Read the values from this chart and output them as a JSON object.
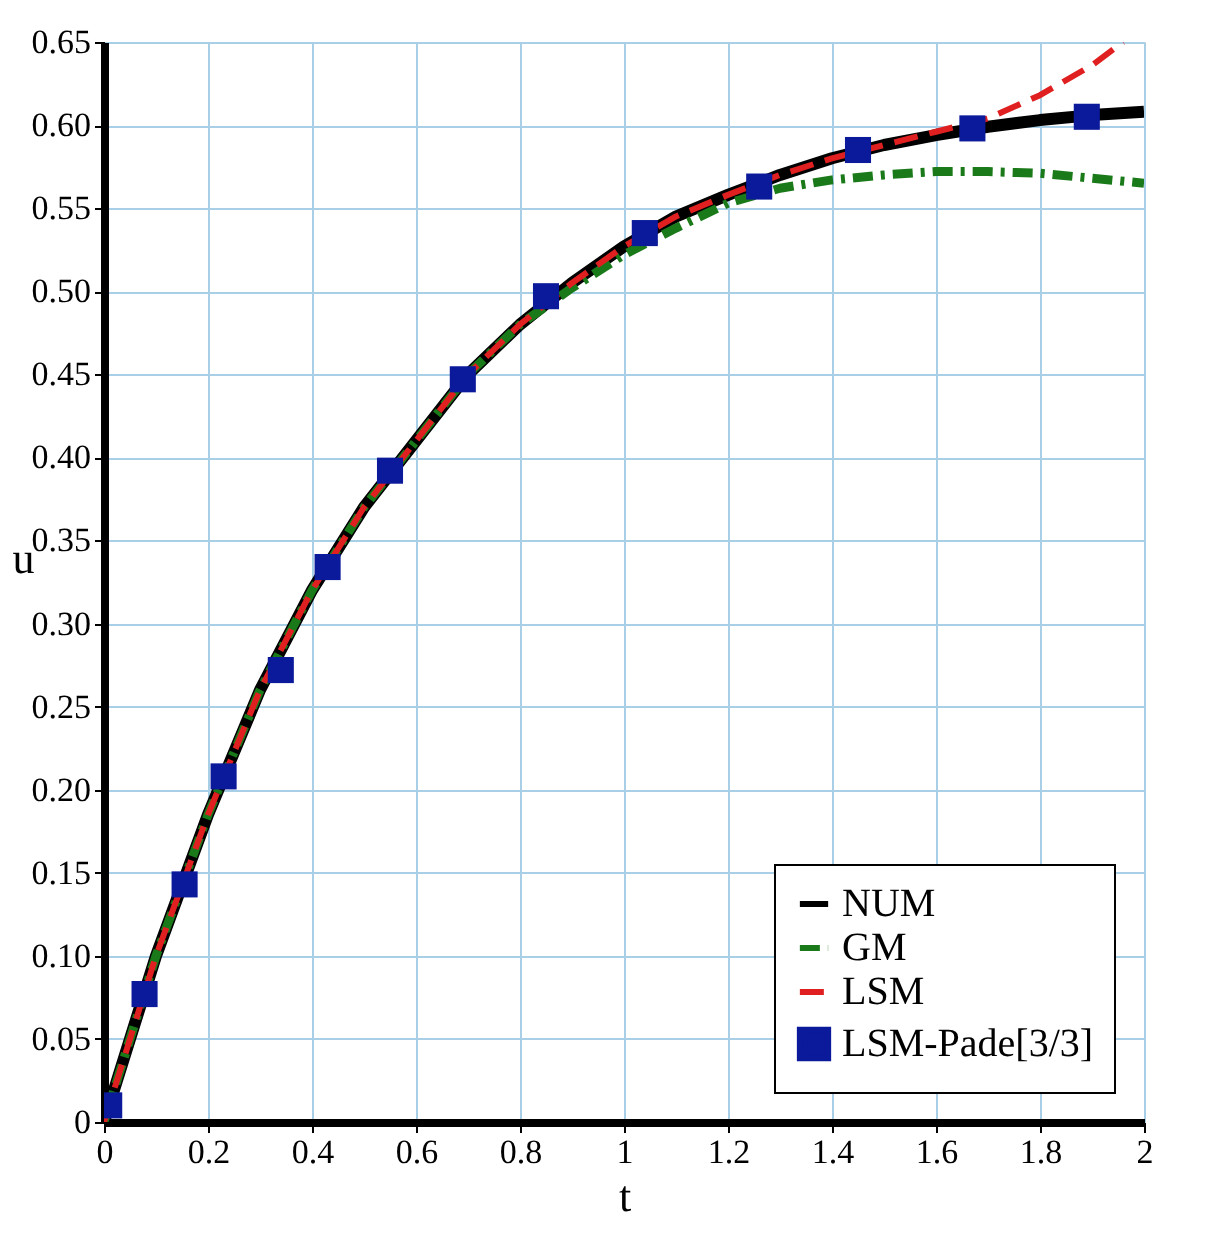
{
  "chart_data": {
    "type": "line",
    "xlabel": "t",
    "ylabel": "u",
    "xlim": [
      0,
      2
    ],
    "ylim": [
      0,
      0.65
    ],
    "xticks": [
      0,
      0.2,
      0.4,
      0.6,
      0.8,
      1,
      1.2,
      1.4,
      1.6,
      1.8,
      2
    ],
    "yticks": [
      0,
      0.05,
      {
        "value": 0.1,
        "label": "0.10"
      },
      0.15,
      {
        "value": 0.2,
        "label": "0.20"
      },
      0.25,
      {
        "value": 0.3,
        "label": "0.30"
      },
      0.35,
      {
        "value": 0.4,
        "label": "0.40"
      },
      0.45,
      {
        "value": 0.5,
        "label": "0.50"
      },
      0.55,
      {
        "value": 0.6,
        "label": "0.60"
      },
      0.65
    ],
    "grid": true,
    "legend": "bottom right",
    "series": [
      {
        "name": "NUM",
        "type": "line",
        "line_style": "solid",
        "color": "#000000",
        "x": [
          0,
          0.1,
          0.2,
          0.3,
          0.4,
          0.5,
          0.6,
          0.7,
          0.8,
          0.9,
          1.0,
          1.1,
          1.2,
          1.3,
          1.4,
          1.5,
          1.6,
          1.7,
          1.8,
          1.9,
          2.0
        ],
        "values": [
          0,
          0.1,
          0.185,
          0.26,
          0.32,
          0.37,
          0.41,
          0.45,
          0.48,
          0.505,
          0.527,
          0.545,
          0.558,
          0.57,
          0.58,
          0.588,
          0.594,
          0.599,
          0.603,
          0.606,
          0.608
        ]
      },
      {
        "name": "GM",
        "type": "line",
        "line_style": "dashdot",
        "color": "#1a7a1a",
        "x": [
          0,
          0.1,
          0.2,
          0.3,
          0.4,
          0.5,
          0.6,
          0.7,
          0.8,
          0.9,
          1.0,
          1.1,
          1.2,
          1.3,
          1.4,
          1.5,
          1.6,
          1.7,
          1.8,
          1.9,
          2.0
        ],
        "values": [
          0,
          0.1,
          0.185,
          0.26,
          0.32,
          0.37,
          0.41,
          0.45,
          0.48,
          0.502,
          0.522,
          0.538,
          0.553,
          0.562,
          0.567,
          0.57,
          0.572,
          0.572,
          0.571,
          0.568,
          0.565
        ]
      },
      {
        "name": "LSM",
        "type": "line",
        "line_style": "dashed",
        "color": "#e02020",
        "x": [
          0,
          0.1,
          0.2,
          0.3,
          0.4,
          0.5,
          0.6,
          0.7,
          0.8,
          0.9,
          1.0,
          1.1,
          1.2,
          1.3,
          1.4,
          1.5,
          1.6,
          1.7,
          1.8,
          1.9,
          1.96
        ],
        "values": [
          0,
          0.1,
          0.185,
          0.26,
          0.32,
          0.37,
          0.41,
          0.45,
          0.48,
          0.505,
          0.527,
          0.545,
          0.558,
          0.57,
          0.58,
          0.588,
          0.596,
          0.604,
          0.618,
          0.636,
          0.65
        ]
      },
      {
        "name": "LSM-Pade[3/3]",
        "type": "scatter",
        "marker": "square",
        "color": "#0a1a9a",
        "x": [
          0.01,
          0.078,
          0.155,
          0.23,
          0.34,
          0.43,
          0.55,
          0.69,
          0.85,
          1.04,
          1.26,
          1.45,
          1.67,
          1.89
        ],
        "values": [
          0.01,
          0.077,
          0.143,
          0.208,
          0.272,
          0.334,
          0.392,
          0.447,
          0.497,
          0.535,
          0.563,
          0.585,
          0.598,
          0.605
        ]
      }
    ]
  }
}
